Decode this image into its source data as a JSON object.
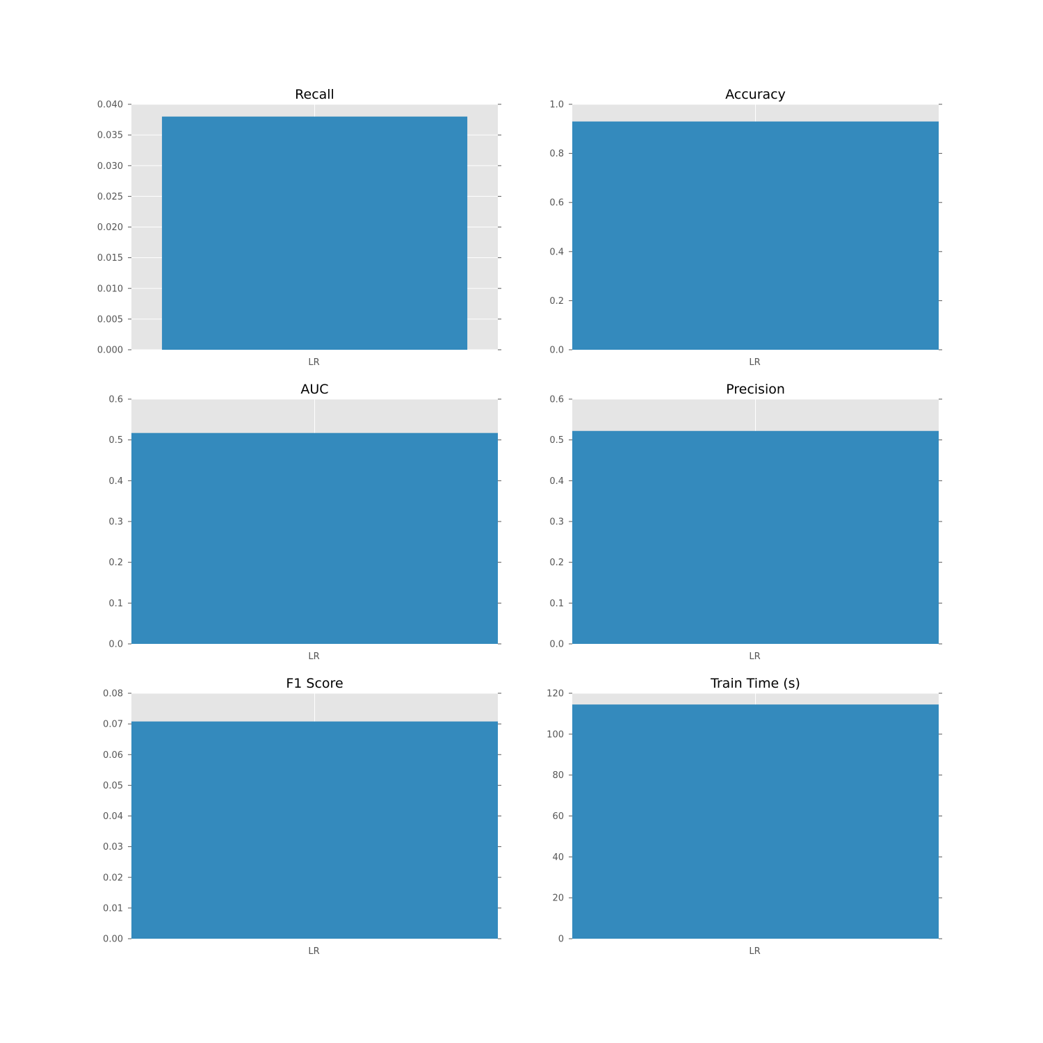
{
  "chart_data": [
    {
      "type": "bar",
      "title": "Recall",
      "categories": [
        "LR"
      ],
      "values": [
        0.038
      ],
      "xlabel": "",
      "ylabel": "",
      "ylim": [
        0,
        0.04
      ],
      "yticks": [
        "0.000",
        "0.005",
        "0.010",
        "0.015",
        "0.020",
        "0.025",
        "0.030",
        "0.035",
        "0.040"
      ],
      "bar_width_fraction": 0.8333,
      "grid": true
    },
    {
      "type": "bar",
      "title": "Accuracy",
      "categories": [
        "LR"
      ],
      "values": [
        0.93
      ],
      "xlabel": "",
      "ylabel": "",
      "ylim": [
        0,
        1.0
      ],
      "yticks": [
        "0.0",
        "0.2",
        "0.4",
        "0.6",
        "0.8",
        "1.0"
      ],
      "bar_width_fraction": 1.0,
      "grid": true
    },
    {
      "type": "bar",
      "title": "AUC",
      "categories": [
        "LR"
      ],
      "values": [
        0.517
      ],
      "xlabel": "",
      "ylabel": "",
      "ylim": [
        0,
        0.6
      ],
      "yticks": [
        "0.0",
        "0.1",
        "0.2",
        "0.3",
        "0.4",
        "0.5",
        "0.6"
      ],
      "bar_width_fraction": 1.0,
      "grid": true
    },
    {
      "type": "bar",
      "title": "Precision",
      "categories": [
        "LR"
      ],
      "values": [
        0.522
      ],
      "xlabel": "",
      "ylabel": "",
      "ylim": [
        0,
        0.6
      ],
      "yticks": [
        "0.0",
        "0.1",
        "0.2",
        "0.3",
        "0.4",
        "0.5",
        "0.6"
      ],
      "bar_width_fraction": 1.0,
      "grid": true
    },
    {
      "type": "bar",
      "title": "F1 Score",
      "categories": [
        "LR"
      ],
      "values": [
        0.0708
      ],
      "xlabel": "",
      "ylabel": "",
      "ylim": [
        0,
        0.08
      ],
      "yticks": [
        "0.00",
        "0.01",
        "0.02",
        "0.03",
        "0.04",
        "0.05",
        "0.06",
        "0.07",
        "0.08"
      ],
      "bar_width_fraction": 1.0,
      "grid": true
    },
    {
      "type": "bar",
      "title": "Train Time (s)",
      "categories": [
        "LR"
      ],
      "values": [
        114.5
      ],
      "xlabel": "",
      "ylabel": "",
      "ylim": [
        0,
        120
      ],
      "yticks": [
        "0",
        "20",
        "40",
        "60",
        "80",
        "100",
        "120"
      ],
      "bar_width_fraction": 1.0,
      "grid": true
    }
  ],
  "colors": {
    "bar": "#348abd",
    "plot_background": "#e5e5e5",
    "grid": "#ffffff",
    "tick_text": "#555555",
    "title_text": "#000000"
  }
}
